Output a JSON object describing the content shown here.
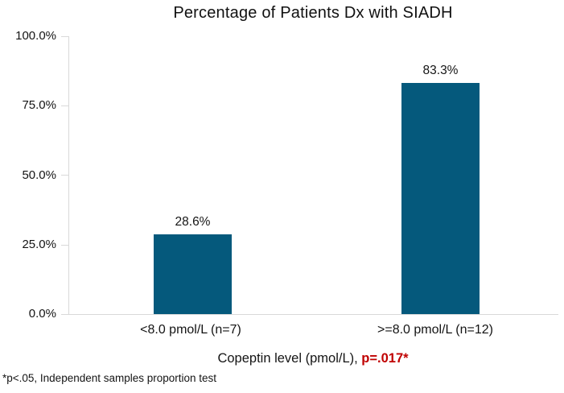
{
  "chart_data": {
    "type": "bar",
    "title": "Percentage of Patients Dx with SIADH",
    "categories": [
      "<8.0 pmol/L (n=7)",
      ">=8.0 pmol/L (n=12)"
    ],
    "values": [
      28.6,
      83.3
    ],
    "value_labels": [
      "28.6%",
      "83.3%"
    ],
    "ylim": [
      0,
      100
    ],
    "ytick_values": [
      100,
      75,
      50,
      25,
      0
    ],
    "ytick_labels": [
      "100.0%",
      "75.0%",
      "50.0%",
      "25.0%",
      "0.0%"
    ],
    "xlabel_text": "Copeptin level (pmol/L), ",
    "xlabel_pvalue": "p=.017*",
    "ylabel": "",
    "footnote": "*p<.05, Independent samples proportion test",
    "bar_color": "#05597C",
    "pvalue_color": "#C00000",
    "axis_color": "#D9D9D9",
    "grid": false,
    "legend": "none"
  }
}
